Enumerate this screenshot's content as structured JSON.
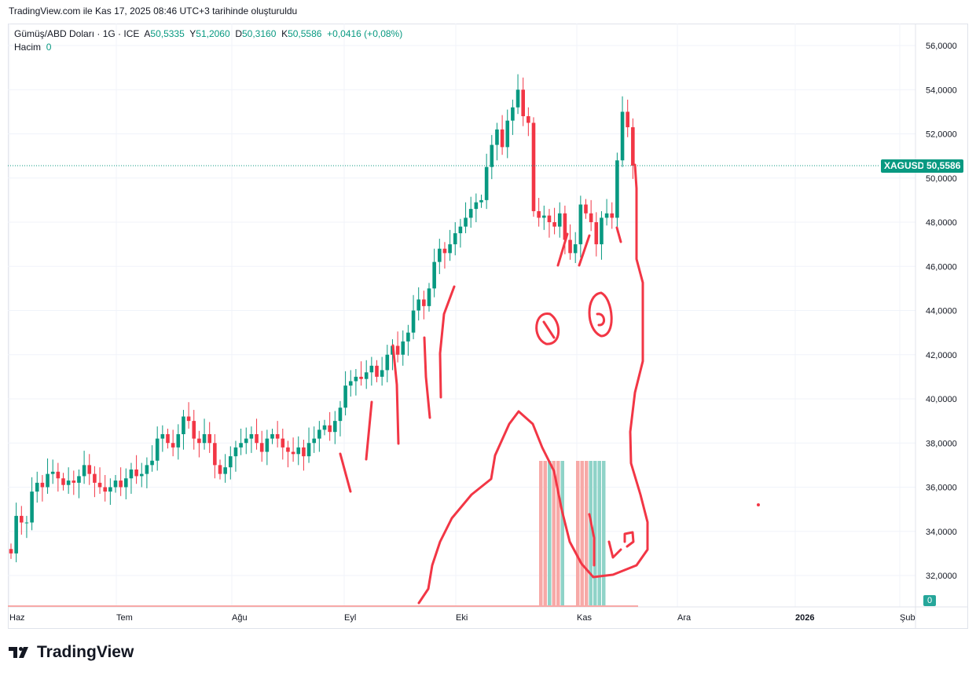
{
  "caption": "TradingView.com ile Kas 17, 2025 08:46 UTC+3 tarihinde oluşturuldu",
  "legend": {
    "symbol": "Gümüş/ABD Doları · 1G · ICE",
    "o_label": "A",
    "o": "50,5335",
    "h_label": "Y",
    "h": "51,2060",
    "l_label": "D",
    "l": "50,3160",
    "c_label": "K",
    "c": "50,5586",
    "change": "+0,0416 (+0,08%)",
    "volume_label": "Hacim",
    "volume": "0"
  },
  "price_tag": {
    "symbol": "XAGUSD",
    "price": "50,5586"
  },
  "volume_tag": "0",
  "brand": "TradingView",
  "colors": {
    "up": "#089981",
    "down": "#f23645",
    "drawing": "#f23645"
  },
  "chart_data": {
    "type": "candlestick",
    "yticks": [
      "56,0000",
      "54,0000",
      "52,0000",
      "50,0000",
      "48,0000",
      "46,0000",
      "44,0000",
      "42,0000",
      "40,0000",
      "38,0000",
      "36,0000",
      "34,0000",
      "32,0000"
    ],
    "ylim": [
      30.6,
      57.0
    ],
    "xticks": [
      "Haz",
      "Tem",
      "Ağu",
      "Eyl",
      "Eki",
      "Kas",
      "Ara",
      "2026",
      "Şub"
    ],
    "start": 33.2,
    "closes": [
      33.0,
      34.7,
      34.4,
      34.4,
      35.8,
      36.2,
      36.0,
      36.6,
      36.7,
      36.4,
      36.1,
      36.3,
      36.2,
      36.5,
      37.0,
      36.6,
      36.2,
      36.0,
      35.8,
      36.0,
      36.3,
      36.0,
      36.4,
      36.8,
      36.5,
      36.6,
      37.0,
      37.2,
      38.2,
      38.4,
      38.0,
      37.8,
      38.4,
      39.2,
      39.0,
      38.2,
      38.0,
      38.4,
      38.0,
      37.0,
      36.6,
      36.9,
      37.4,
      37.8,
      38.0,
      38.2,
      38.4,
      38.0,
      37.6,
      38.2,
      38.4,
      38.2,
      37.8,
      37.6,
      37.5,
      37.8,
      37.4,
      38.0,
      38.2,
      38.6,
      38.8,
      38.5,
      39.0,
      39.6,
      40.6,
      40.8,
      41.0,
      40.9,
      41.2,
      41.5,
      41.0,
      41.3,
      42.0,
      42.4,
      42.0,
      42.6,
      43.0,
      44.0,
      44.5,
      44.2,
      45.0,
      46.2,
      46.8,
      46.6,
      47.0,
      47.5,
      47.8,
      48.2,
      48.6,
      48.9,
      49.0,
      50.5,
      51.5,
      52.2,
      51.4,
      52.6,
      53.2,
      54.0,
      52.8,
      52.5,
      48.5,
      48.2,
      48.3,
      48.0,
      47.8,
      48.4,
      47.2,
      46.6,
      47.0,
      48.8,
      48.4,
      48.0,
      47.0,
      48.2,
      48.4,
      48.2,
      50.8,
      53.0,
      52.3,
      50.56
    ],
    "last_price": 50.5586
  }
}
